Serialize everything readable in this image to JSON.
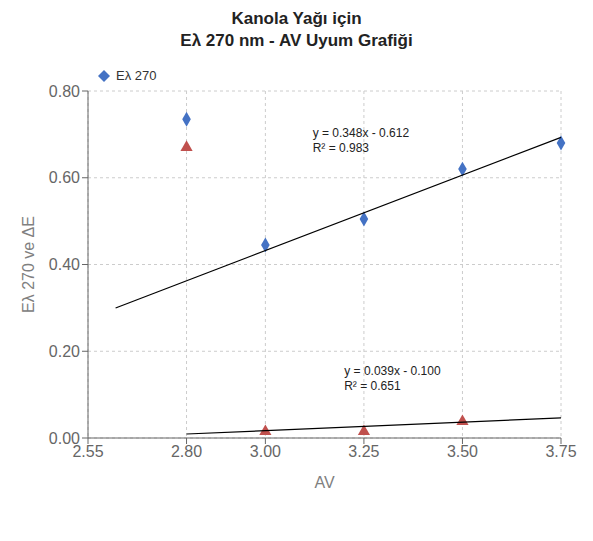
{
  "chart_data": {
    "type": "scatter",
    "title": "Kanola Yağı için\nEλ 270 nm - AV Uyum Grafiği",
    "x_label": "AV",
    "y_label": "Eλ 270 ve ΔE",
    "xlim": [
      2.55,
      3.75
    ],
    "xticks": [
      {
        "value": 2.55,
        "label": "2.55"
      },
      {
        "value": 2.8,
        "label": "2.80"
      },
      {
        "value": 3.0,
        "label": "3.00"
      },
      {
        "value": 3.25,
        "label": "3.25"
      },
      {
        "value": 3.5,
        "label": "3.50"
      },
      {
        "value": 3.75,
        "label": "3.75"
      }
    ],
    "ylim": [
      0.0,
      0.8
    ],
    "yticks": [
      {
        "value": 0,
        "label": "0.00"
      },
      {
        "value": 0.2,
        "label": "0.20"
      },
      {
        "value": 0.4,
        "label": "0.40"
      },
      {
        "value": 0.6,
        "label": "0.60"
      },
      {
        "value": 0.8,
        "label": "0.80"
      }
    ],
    "grid": true,
    "legend": "upper left",
    "series": [
      {
        "name": "Eλ 270",
        "type": "scatter",
        "marker": "diamond",
        "color": "#4472C4",
        "x": [
          2.8,
          3.0,
          3.25,
          3.5,
          3.75
        ],
        "values": [
          0.735,
          0.445,
          0.505,
          0.62,
          0.68
        ]
      },
      {
        "type": "scatter",
        "marker": "triangle",
        "color": "#C0504D",
        "x": [
          2.8,
          3.0,
          3.25,
          3.5
        ],
        "values": [
          0.67,
          0.015,
          0.015,
          0.038
        ]
      },
      {
        "type": "line",
        "color": "#000000",
        "x": [
          2.62,
          3.75
        ],
        "values": [
          0.29976,
          0.693
        ]
      },
      {
        "type": "line",
        "color": "#000000",
        "x": [
          2.8,
          3.75
        ],
        "values": [
          0.0092,
          0.04625
        ]
      }
    ],
    "annotations": [
      {
        "text": "y = 0.348x - 0.612\nR² = 0.983",
        "x": 3.12,
        "y": 0.72
      },
      {
        "text": "y = 0.039x - 0.100\nR² = 0.651",
        "x": 3.2,
        "y": 0.17
      }
    ]
  }
}
